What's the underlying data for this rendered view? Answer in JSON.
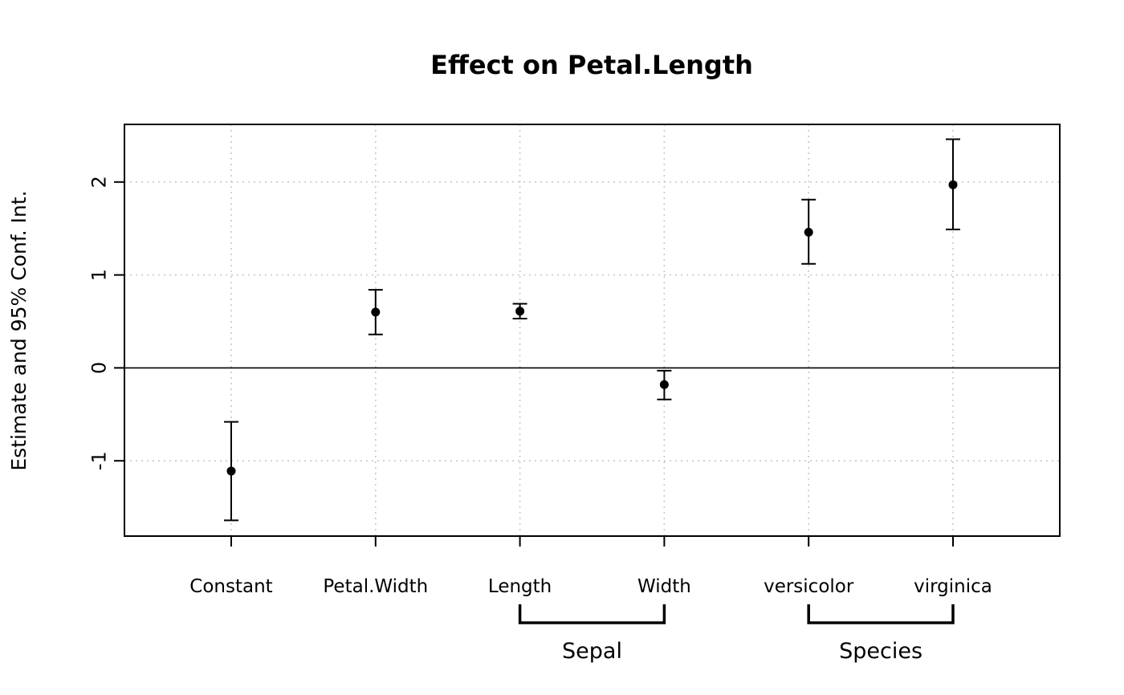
{
  "chart_data": {
    "type": "scatter",
    "subtype": "coefficient-plot-with-error-bars",
    "title": "Effect on Petal.Length",
    "ylabel": "Estimate and 95% Conf. Int.",
    "xlabel": "",
    "categories": [
      "Constant",
      "Petal.Width",
      "Length",
      "Width",
      "versicolor",
      "virginica"
    ],
    "series": [
      {
        "name": "Estimate",
        "values": [
          -1.11,
          0.6,
          0.61,
          -0.18,
          1.46,
          1.97
        ]
      }
    ],
    "ci_low": [
      -1.64,
      0.36,
      0.53,
      -0.34,
      1.12,
      1.49
    ],
    "ci_high": [
      -0.58,
      0.84,
      0.69,
      -0.03,
      1.81,
      2.46
    ],
    "yticks": [
      -1,
      0,
      1,
      2
    ],
    "ytick_labels": [
      "-1",
      "0",
      "1",
      "2"
    ],
    "ylim": [
      -1.81,
      2.62
    ],
    "zero_line": 0,
    "grid": true,
    "legend": "none",
    "groups": [
      {
        "label": "Sepal",
        "from_index": 2,
        "to_index": 3
      },
      {
        "label": "Species",
        "from_index": 4,
        "to_index": 5
      }
    ],
    "colors": {
      "point": "#000000",
      "error_bar": "#000000",
      "grid": "#c8c8c8",
      "axis": "#000000",
      "background": "#ffffff"
    }
  }
}
